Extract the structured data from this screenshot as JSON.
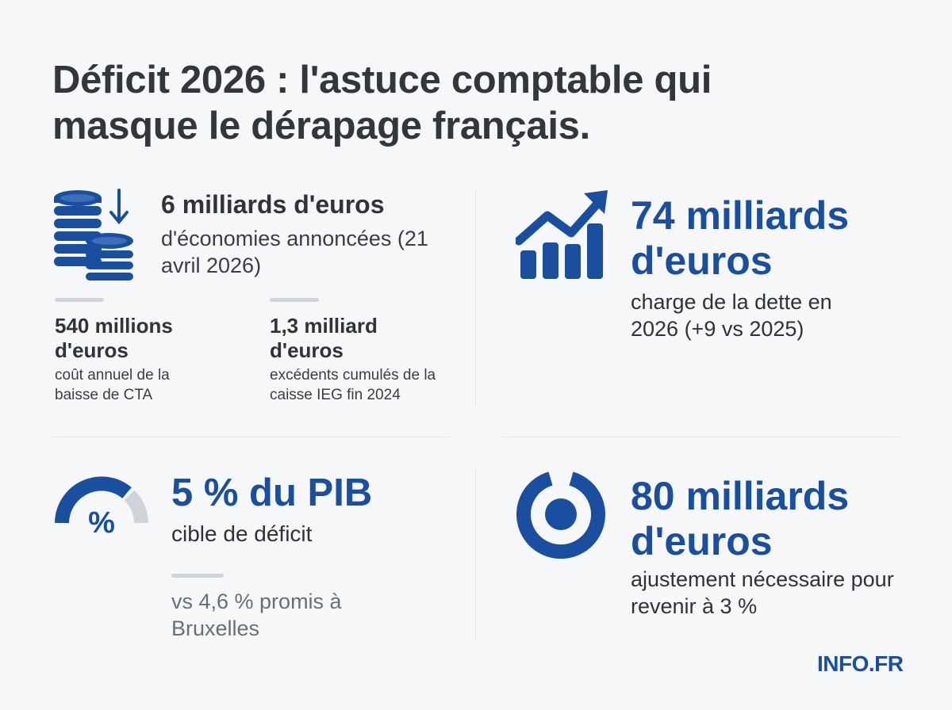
{
  "title": "Déficit 2026 : l'astuce comptable qui masque le dérapage français.",
  "colors": {
    "accent": "#1a4fa0",
    "background": "#f5f7f9",
    "muted_bar": "#cfd4da"
  },
  "savings": {
    "icon": "coins-down-arrow-icon",
    "head": "6 milliards d'euros",
    "desc": "d'économies annoncées (21 avril 2026)"
  },
  "cta": {
    "head": "540 millions d'euros",
    "desc": "coût annuel de la baisse de CTA"
  },
  "ieg": {
    "head": "1,3 milliard d'euros",
    "desc": "excédents cumulés de la caisse IEG fin 2024"
  },
  "debt_charge": {
    "icon": "growth-chart-arrow-icon",
    "head": "74 milliards d'euros",
    "desc": "charge de la dette en 2026 (+9 vs 2025)"
  },
  "deficit_target": {
    "icon": "percent-gauge-icon",
    "head": "5 % du PIB",
    "desc": "cible de déficit",
    "comparison": "vs 4,6 % promis à Bruxelles"
  },
  "adjustment": {
    "icon": "target-ring-icon",
    "head": "80 milliards d'euros",
    "desc": "ajustement nécessaire pour revenir à 3 %"
  },
  "brand": "INFO.FR"
}
